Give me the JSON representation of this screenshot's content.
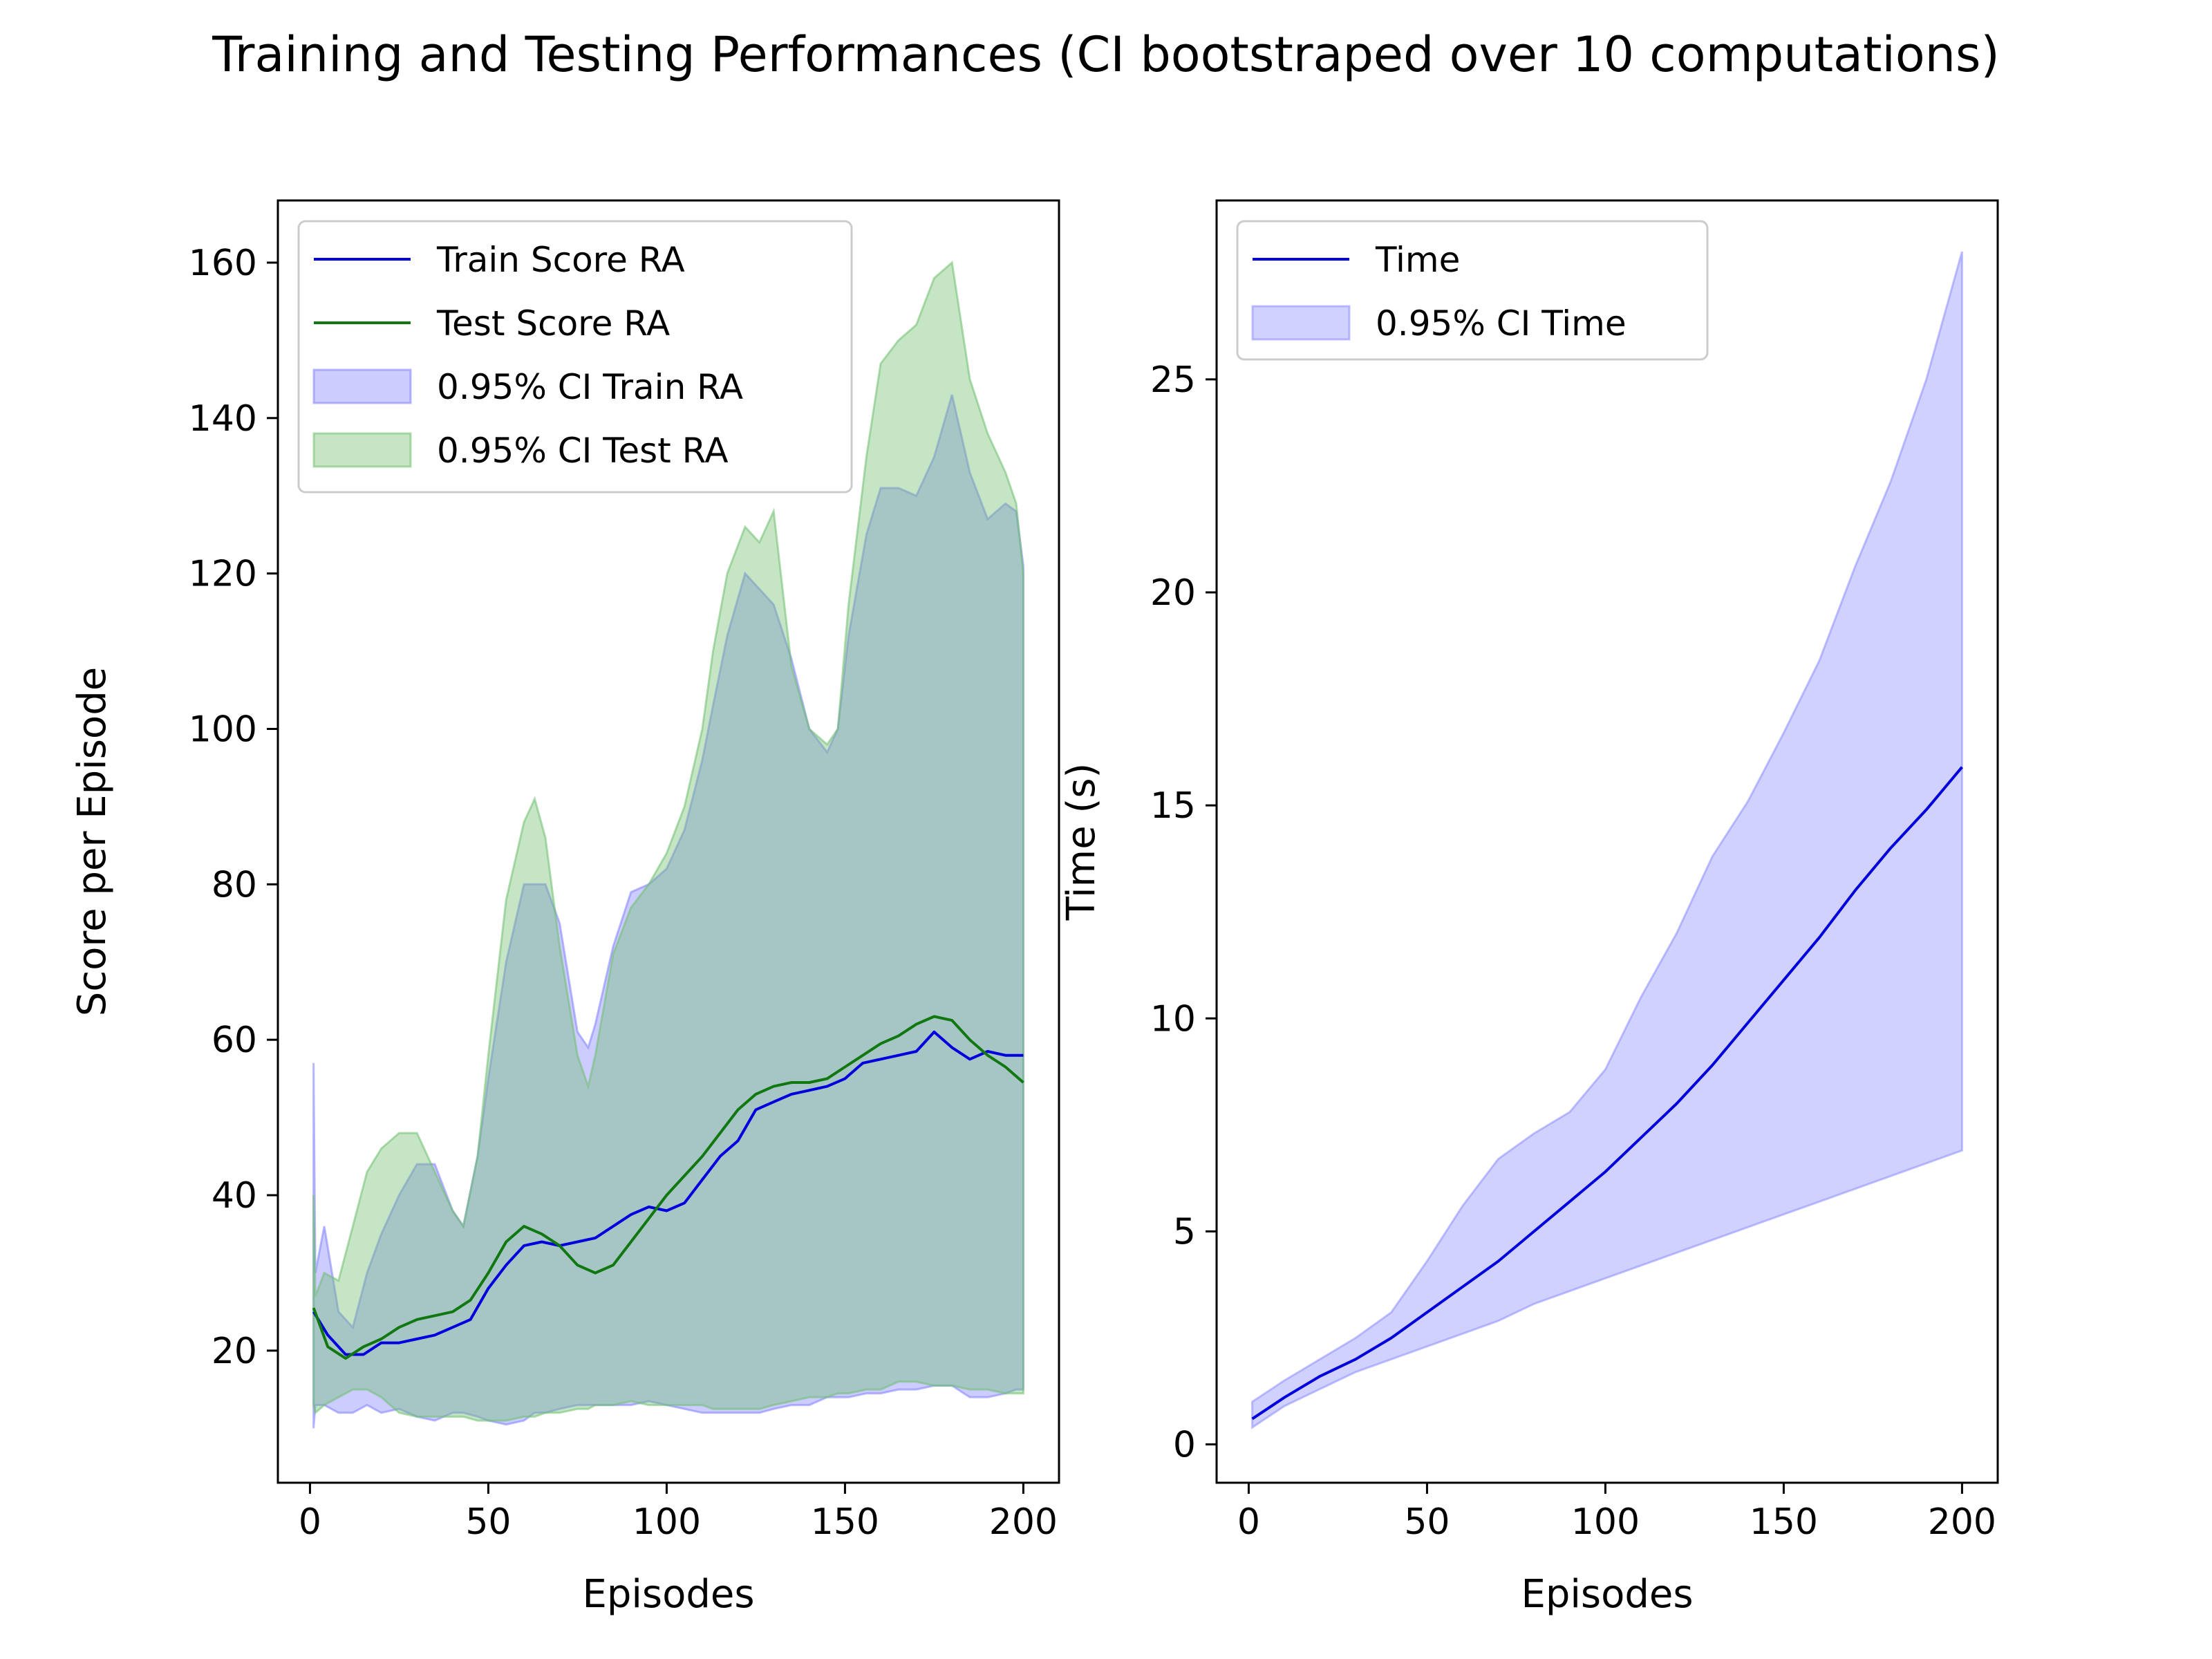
{
  "figure": {
    "suptitle": "Training and Testing Performances (CI bootstraped over 10 computations)"
  },
  "colors": {
    "train": "#0000dd",
    "test": "#117711",
    "train_fill": "#8080ff",
    "test_fill": "#6fbf6f",
    "time": "#0000dd",
    "time_fill": "#8c8cff"
  },
  "chart_data": [
    {
      "type": "line",
      "xlabel": "Episodes",
      "ylabel": "Score per Episode",
      "xlim": [
        -9,
        210
      ],
      "ylim": [
        3,
        168
      ],
      "xticks": [
        0,
        50,
        100,
        150,
        200
      ],
      "yticks": [
        20,
        40,
        60,
        80,
        100,
        120,
        140,
        160
      ],
      "legend_position": "upper-left",
      "grid": false,
      "legend": [
        "Train Score RA",
        "Test Score RA",
        "0.95% CI Train RA",
        "0.95% CI Test RA"
      ],
      "series": [
        {
          "name": "Train Score RA",
          "kind": "line",
          "color_key": "train",
          "x": [
            1,
            5,
            10,
            15,
            20,
            25,
            30,
            35,
            40,
            45,
            50,
            55,
            60,
            65,
            70,
            75,
            80,
            85,
            90,
            95,
            100,
            105,
            110,
            115,
            120,
            125,
            130,
            135,
            140,
            145,
            150,
            155,
            160,
            165,
            170,
            175,
            180,
            185,
            190,
            195,
            200
          ],
          "y": [
            25,
            22,
            19.5,
            19.5,
            21,
            21,
            21.5,
            22,
            23,
            24,
            28,
            31,
            33.5,
            34,
            33.5,
            34,
            34.5,
            36,
            37.5,
            38.5,
            38,
            39,
            42,
            45,
            47,
            51,
            52,
            53,
            53.5,
            54,
            55,
            57,
            57.5,
            58,
            58.5,
            61,
            59,
            57.5,
            58.5,
            58,
            58
          ]
        },
        {
          "name": "Test Score RA",
          "kind": "line",
          "color_key": "test",
          "x": [
            1,
            5,
            10,
            15,
            20,
            25,
            30,
            35,
            40,
            45,
            50,
            55,
            60,
            65,
            70,
            75,
            80,
            85,
            90,
            95,
            100,
            105,
            110,
            115,
            120,
            125,
            130,
            135,
            140,
            145,
            150,
            155,
            160,
            165,
            170,
            175,
            180,
            185,
            190,
            195,
            200
          ],
          "y": [
            25.5,
            20.5,
            19,
            20.5,
            21.5,
            23,
            24,
            24.5,
            25,
            26.5,
            30,
            34,
            36,
            35,
            33.5,
            31,
            30,
            31,
            34,
            37,
            40,
            42.5,
            45,
            48,
            51,
            53,
            54,
            54.5,
            54.5,
            55,
            56.5,
            58,
            59.5,
            60.5,
            62,
            63,
            62.5,
            60,
            58,
            56.5,
            54.5
          ]
        },
        {
          "name": "0.95% CI Train RA",
          "kind": "band",
          "color_key": "train_fill",
          "x": [
            1,
            1.5,
            4,
            8,
            12,
            16,
            20,
            25,
            30,
            35,
            40,
            43,
            47,
            50,
            55,
            60,
            63,
            66,
            70,
            75,
            78,
            80,
            85,
            90,
            95,
            100,
            105,
            110,
            113,
            117,
            122,
            126,
            130,
            135,
            140,
            145,
            148,
            151,
            156,
            160,
            165,
            170,
            175,
            180,
            185,
            190,
            195,
            198,
            200
          ],
          "lower": [
            10,
            13,
            13,
            12,
            12,
            13,
            12,
            12.5,
            11.5,
            11,
            12,
            12,
            11.5,
            11,
            10.5,
            11,
            12,
            12,
            12.5,
            13,
            13,
            13,
            13,
            13,
            13.5,
            13,
            12.5,
            12,
            12,
            12,
            12,
            12,
            12.5,
            13,
            13,
            14,
            14,
            14,
            14.5,
            14.5,
            15,
            15,
            15.5,
            15.5,
            14,
            14,
            14.5,
            15,
            15
          ],
          "upper": [
            57,
            30,
            36,
            25,
            23,
            30,
            35,
            40,
            44,
            44,
            38,
            36,
            45,
            55,
            70,
            80,
            80,
            80,
            75,
            61,
            59,
            62,
            72,
            79,
            80,
            82,
            87,
            96,
            103,
            112,
            120,
            118,
            116,
            109,
            100,
            97,
            100,
            112,
            125,
            131,
            131,
            130,
            135,
            143,
            133,
            127,
            129,
            128,
            121
          ]
        },
        {
          "name": "0.95% CI Test RA",
          "kind": "band",
          "color_key": "test_fill",
          "x": [
            1,
            1.5,
            4,
            8,
            12,
            16,
            20,
            25,
            30,
            35,
            40,
            43,
            47,
            50,
            55,
            60,
            63,
            66,
            70,
            75,
            78,
            80,
            85,
            90,
            95,
            100,
            105,
            110,
            113,
            117,
            122,
            126,
            130,
            135,
            140,
            145,
            148,
            151,
            156,
            160,
            165,
            170,
            175,
            180,
            185,
            190,
            195,
            198,
            200
          ],
          "lower": [
            13,
            12,
            13,
            14,
            15,
            15,
            14,
            12,
            11.5,
            11.5,
            11.5,
            11.5,
            11,
            11,
            11,
            11.5,
            11.5,
            12,
            12,
            12.5,
            12.5,
            13,
            13,
            13.5,
            13,
            13,
            13,
            13,
            12.5,
            12.5,
            12.5,
            12.5,
            13,
            13.5,
            14,
            14,
            14.5,
            14.5,
            15,
            15,
            16,
            16,
            15.5,
            15.5,
            15,
            15,
            14.5,
            14.5,
            14.5
          ],
          "upper": [
            40,
            27,
            30,
            29,
            36,
            43,
            46,
            48,
            48,
            43,
            38,
            36,
            45,
            58,
            78,
            88,
            91,
            86,
            72,
            58,
            54,
            58,
            71,
            77,
            80,
            84,
            90,
            100,
            110,
            120,
            126,
            124,
            128,
            108,
            100,
            98,
            100,
            116,
            135,
            147,
            150,
            152,
            158,
            160,
            145,
            138,
            133,
            129,
            120
          ]
        }
      ]
    },
    {
      "type": "line",
      "xlabel": "Episodes",
      "ylabel": "Time (s)",
      "xlim": [
        -9,
        210
      ],
      "ylim": [
        -0.9,
        29.2
      ],
      "xticks": [
        0,
        50,
        100,
        150,
        200
      ],
      "yticks": [
        0,
        5,
        10,
        15,
        20,
        25
      ],
      "legend_position": "upper-left",
      "grid": false,
      "legend": [
        "Time",
        "0.95% CI Time"
      ],
      "series": [
        {
          "name": "Time",
          "kind": "line",
          "color_key": "time",
          "x": [
            1,
            10,
            20,
            30,
            40,
            50,
            60,
            70,
            80,
            90,
            100,
            110,
            120,
            130,
            140,
            150,
            160,
            170,
            180,
            190,
            200
          ],
          "y": [
            0.6,
            1.1,
            1.6,
            2.0,
            2.5,
            3.1,
            3.7,
            4.3,
            5.0,
            5.7,
            6.4,
            7.2,
            8.0,
            8.9,
            9.9,
            10.9,
            11.9,
            13.0,
            14.0,
            14.9,
            15.9
          ]
        },
        {
          "name": "0.95% CI Time",
          "kind": "band",
          "color_key": "time_fill",
          "x": [
            1,
            10,
            20,
            30,
            40,
            50,
            60,
            70,
            80,
            90,
            100,
            110,
            120,
            130,
            140,
            150,
            160,
            170,
            180,
            190,
            200
          ],
          "lower": [
            0.4,
            0.9,
            1.3,
            1.7,
            2.0,
            2.3,
            2.6,
            2.9,
            3.3,
            3.6,
            3.9,
            4.2,
            4.5,
            4.8,
            5.1,
            5.4,
            5.7,
            6.0,
            6.3,
            6.6,
            6.9
          ],
          "upper": [
            1.0,
            1.5,
            2.0,
            2.5,
            3.1,
            4.3,
            5.6,
            6.7,
            7.3,
            7.8,
            8.8,
            10.5,
            12.0,
            13.8,
            15.1,
            16.7,
            18.4,
            20.6,
            22.6,
            25.0,
            28.0
          ]
        }
      ]
    }
  ]
}
